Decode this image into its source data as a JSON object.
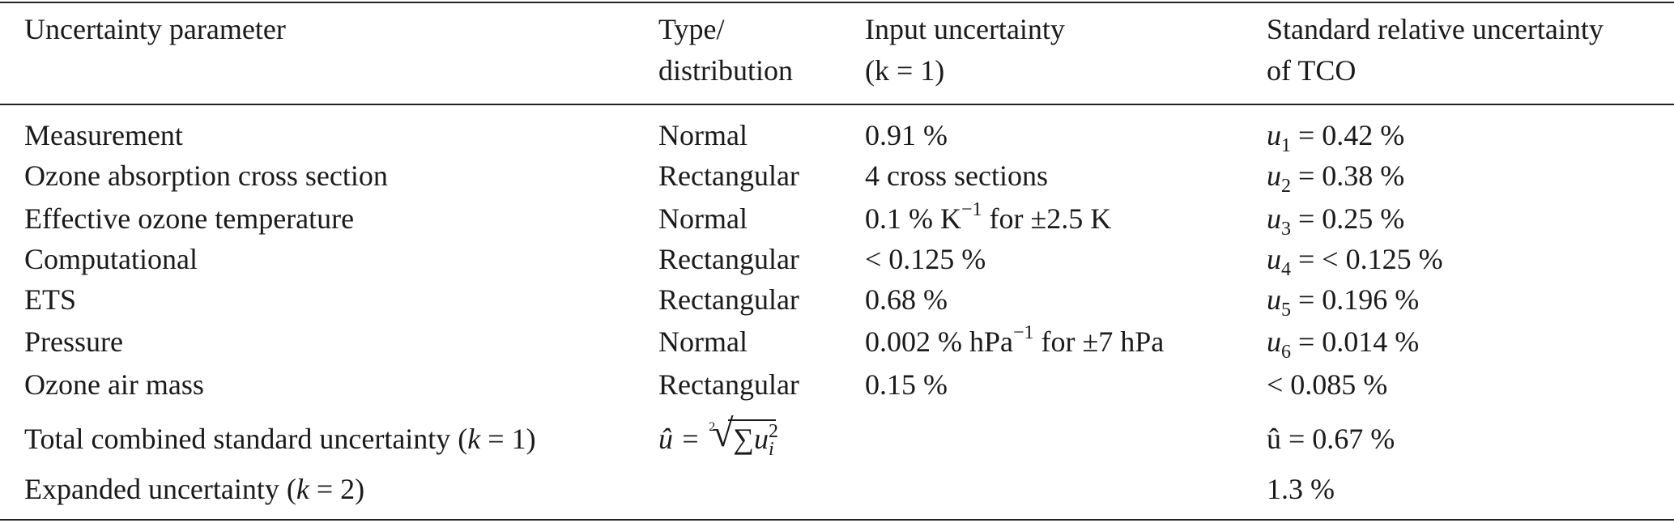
{
  "table": {
    "headers": {
      "param": "Uncertainty parameter",
      "type_line1": "Type/",
      "type_line2": "distribution",
      "input_line1": "Input uncertainty",
      "input_line2": "(k = 1)",
      "std_line1": "Standard relative uncertainty",
      "std_line2": "of TCO"
    },
    "rows": [
      {
        "param": "Measurement",
        "type": "Normal",
        "input": "0.91 %",
        "u_name": "u",
        "u_sub": "1",
        "u_val": " = 0.42 %"
      },
      {
        "param": "Ozone absorption cross section",
        "type": "Rectangular",
        "input": "4 cross sections",
        "u_name": "u",
        "u_sub": "2",
        "u_val": " = 0.38 %"
      },
      {
        "param": "Effective ozone temperature",
        "type": "Normal",
        "input_pre": "0.1 % K",
        "input_sup": "−1",
        "input_post": " for ±2.5 K",
        "u_name": "u",
        "u_sub": "3",
        "u_val": " = 0.25 %"
      },
      {
        "param": "Computational",
        "type": "Rectangular",
        "input": "< 0.125 %",
        "u_name": "u",
        "u_sub": "4",
        "u_val": " = < 0.125 %"
      },
      {
        "param": "ETS",
        "type": "Rectangular",
        "input": "0.68 %",
        "u_name": "u",
        "u_sub": "5",
        "u_val": " = 0.196 %"
      },
      {
        "param": "Pressure",
        "type": "Normal",
        "input_pre": "0.002 % hPa",
        "input_sup": "−1",
        "input_post": " for ±7 hPa",
        "u_name": "u",
        "u_sub": "6",
        "u_val": " = 0.014 %"
      },
      {
        "param": "Ozone air mass",
        "type": "Rectangular",
        "input": "0.15 %",
        "value": "< 0.085 %"
      }
    ],
    "total": {
      "param_pre": "Total combined standard uncertainty (",
      "param_k": "k",
      "param_post": " = 1)",
      "formula_lhs": "û = ",
      "formula_root_index": "2",
      "formula_sum": "∑",
      "formula_u": "u",
      "formula_sub": "i",
      "formula_sup": "2",
      "value": "û = 0.67 %"
    },
    "expanded": {
      "param_pre": "Expanded uncertainty (",
      "param_k": "k",
      "param_post": " = 2)",
      "value": "1.3 %"
    }
  }
}
